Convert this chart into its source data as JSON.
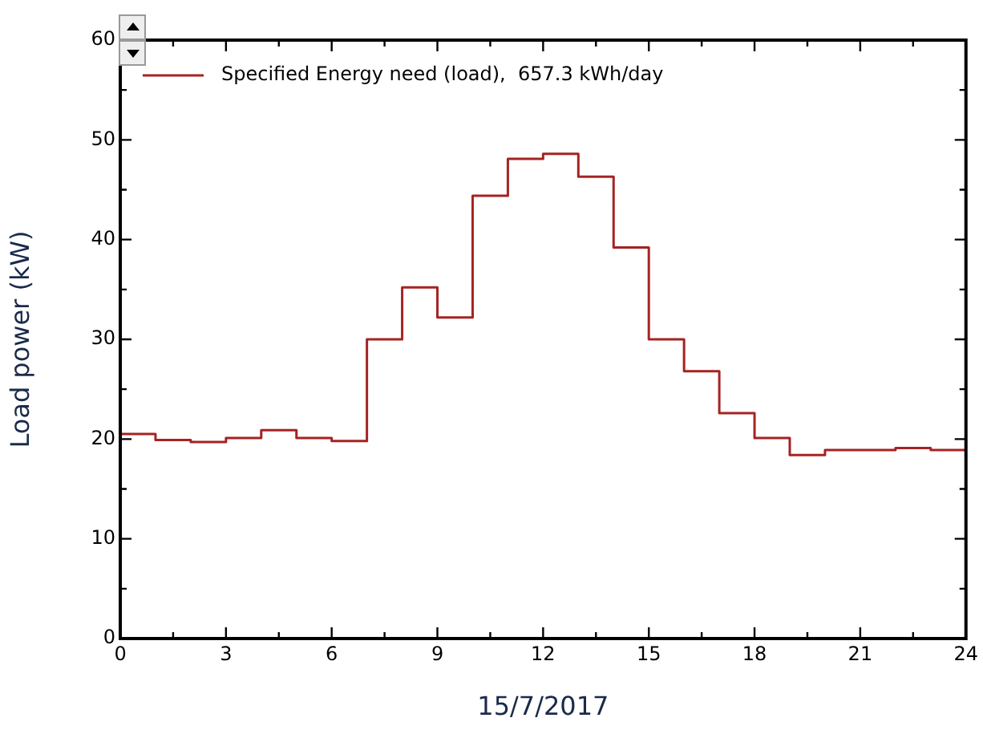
{
  "chart_data": {
    "type": "step",
    "xlabel": "15/7/2017",
    "ylabel": "Load power (kW)",
    "x": [
      0,
      1,
      2,
      3,
      4,
      5,
      6,
      7,
      8,
      9,
      10,
      11,
      12,
      13,
      14,
      15,
      16,
      17,
      18,
      19,
      20,
      21,
      22,
      23,
      24
    ],
    "series": [
      {
        "name": "Specified Energy need (load),  657.3 kWh/day",
        "color": "#a52323",
        "values": [
          20.5,
          19.9,
          19.7,
          20.1,
          20.9,
          20.1,
          19.8,
          30,
          35.2,
          32.2,
          44.4,
          48.1,
          48.6,
          46.3,
          39.2,
          30,
          26.8,
          22.6,
          20.1,
          18.4,
          18.9,
          18.9,
          19.1,
          18.9,
          18.9
        ]
      }
    ],
    "xlim": [
      0,
      24
    ],
    "xticks": [
      0,
      3,
      6,
      9,
      12,
      15,
      18,
      21,
      24
    ],
    "ylim": [
      0,
      60
    ],
    "yticks": [
      0,
      10,
      20,
      30,
      40,
      50,
      60
    ],
    "grid": false,
    "legend": "top left",
    "marker": "none",
    "line_style": "solid"
  }
}
